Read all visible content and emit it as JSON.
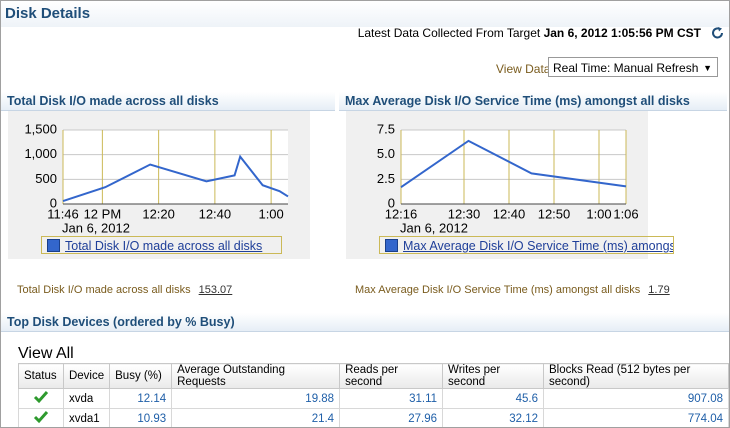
{
  "header": {
    "title": "Disk Details",
    "collected_label": "Latest Data Collected From Target",
    "collected_value": "Jan 6, 2012 1:05:56 PM CST"
  },
  "view_data": {
    "label": "View Data",
    "value": "Real Time: Manual Refresh"
  },
  "chart_data": [
    {
      "type": "line",
      "title": "Total Disk I/O made across all disks",
      "xlabel": "Jan 6, 2012",
      "x": [
        "11:46",
        "12:01",
        "12:17",
        "12:37",
        "12:47",
        "12:49",
        "12:57",
        "13:03",
        "13:06"
      ],
      "series": [
        {
          "name": "Total Disk I/O made across all disks",
          "color": "#3366cc",
          "values": [
            60,
            340,
            800,
            460,
            580,
            960,
            380,
            260,
            153
          ]
        }
      ],
      "xlim": [
        "11:46",
        "13:06"
      ],
      "xticks": [
        "11:46",
        {
          "value": "12:00",
          "label": "12 PM"
        },
        "12:20",
        "12:40",
        {
          "value": "13:00",
          "label": "1:00"
        }
      ],
      "ylim": [
        0,
        1500
      ],
      "yticks": [
        0,
        500,
        {
          "value": 1000,
          "label": "1,000"
        },
        {
          "value": 1500,
          "label": "1,500"
        }
      ],
      "grid": true,
      "summary_label": "Total Disk I/O made across all disks",
      "summary_value": 153.07
    },
    {
      "type": "line",
      "title": "Max Average Disk I/O Service Time (ms) amongst all disks",
      "xlabel": "Jan 6, 2012",
      "x": [
        "12:16",
        "12:31",
        "12:45",
        "13:06"
      ],
      "series": [
        {
          "name": "Max Average Disk I/O Service Time (ms) amongst all disks",
          "color": "#3366cc",
          "values": [
            1.7,
            6.4,
            3.1,
            1.79
          ]
        }
      ],
      "xlim": [
        "12:16",
        "13:06"
      ],
      "xticks": [
        "12:16",
        "12:30",
        "12:40",
        "12:50",
        {
          "value": "13:00",
          "label": "1:00"
        },
        {
          "value": "13:06",
          "label": "1:06"
        }
      ],
      "ylim": [
        0,
        7.5
      ],
      "yticks": [
        0,
        2.5,
        {
          "value": 5,
          "label": "5.0"
        },
        7.5
      ],
      "grid": true,
      "summary_label": "Max Average Disk I/O Service Time (ms) amongst all disks",
      "summary_value": 1.79
    }
  ],
  "table": {
    "title": "Top Disk Devices (ordered by % Busy)",
    "view_all": "View All",
    "columns": [
      "Status",
      "Device",
      "Busy (%)",
      "Average Outstanding Requests",
      "Reads per second",
      "Writes per second",
      "Blocks Read (512 bytes per second)"
    ],
    "rows": [
      [
        "xvda",
        12.14,
        19.88,
        31.11,
        45.6,
        907.08
      ],
      [
        "xvda1",
        10.93,
        21.4,
        27.96,
        32.12,
        774.04
      ]
    ]
  }
}
